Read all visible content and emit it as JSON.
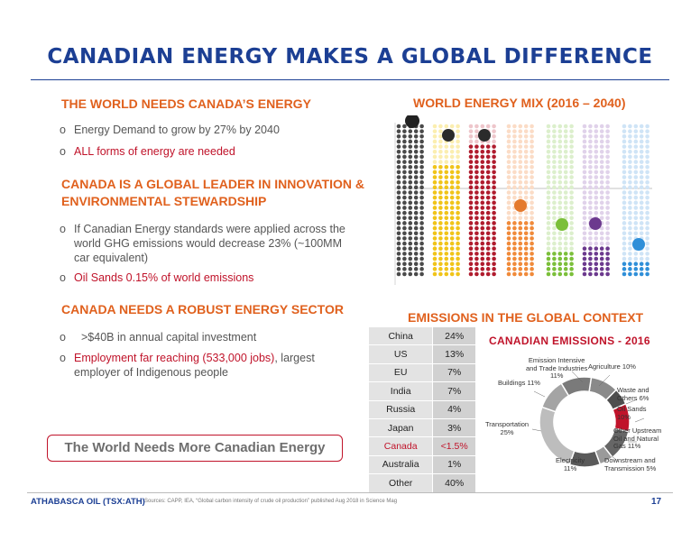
{
  "title": "CANADIAN ENERGY MAKES A GLOBAL DIFFERENCE",
  "left": {
    "section1": {
      "heading": "THE WORLD NEEDS CANADA’S ENERGY",
      "bullets": [
        "Energy Demand to grow by 27% by 2040",
        "ALL forms of energy are needed"
      ]
    },
    "section2": {
      "heading_line1": "CANADA IS A GLOBAL LEADER IN INNOVATION &",
      "heading_line2": "ENVIRONMENTAL STEWARDSHIP",
      "bullet1_lines": [
        "If Canadian Energy standards were applied across the",
        "world GHG emissions would decrease 23% (~100MM",
        "car equivalent)"
      ],
      "bullet2": "Oil Sands 0.15% of world emissions"
    },
    "section3": {
      "heading": "CANADA NEEDS A ROBUST ENERGY SECTOR",
      "bullet1": ">$40B in annual capital investment",
      "bullet2_red": "Employment far reaching (533,000 jobs)",
      "bullet2_rest_line1": ", largest",
      "bullet2_line2": "employer of Indigenous people"
    },
    "bullet_marker": "o",
    "callout": "The World Needs More Canadian Energy"
  },
  "energy_mix": {
    "heading": "WORLD ENERGY MIX (2016 – 2040)"
  },
  "emissions": {
    "heading": "EMISSIONS IN THE GLOBAL CONTEXT",
    "rows": [
      {
        "country": "China",
        "share": "24%"
      },
      {
        "country": "US",
        "share": "13%"
      },
      {
        "country": "EU",
        "share": "7%"
      },
      {
        "country": "India",
        "share": "7%"
      },
      {
        "country": "Russia",
        "share": "4%"
      },
      {
        "country": "Japan",
        "share": "3%"
      },
      {
        "country": "Canada",
        "share": "<1.5%"
      },
      {
        "country": "Australia",
        "share": "1%"
      },
      {
        "country": "Other",
        "share": "40%"
      }
    ]
  },
  "canadian_emissions": {
    "title": "CANADIAN EMISSIONS - 2016",
    "labels": {
      "emission_intensive": [
        "Emission Intensive",
        "and Trade Industries",
        "11%"
      ],
      "agriculture": [
        "Agriculture 10%"
      ],
      "buildings": [
        "Buildings 11%"
      ],
      "waste": [
        "Waste and",
        "Others 6%"
      ],
      "oil_sands": [
        "Oil Sands",
        "10%"
      ],
      "other_upstream": [
        "Other Upstream",
        "Oil and Natural",
        "Gas 11%"
      ],
      "transportation": [
        "Transportation",
        "25%"
      ],
      "electricity": [
        "Electricity",
        "11%"
      ],
      "downstream": [
        "Downstream and",
        "Transmission 5%"
      ]
    }
  },
  "chart_data": {
    "type": "pie",
    "title": "CANADIAN EMISSIONS - 2016",
    "categories": [
      "Agriculture",
      "Waste and Others",
      "Oil Sands",
      "Other Upstream Oil and Natural Gas",
      "Downstream and Transmission",
      "Electricity",
      "Transportation",
      "Buildings",
      "Emission Intensive and Trade Industries"
    ],
    "values": [
      10,
      6,
      10,
      11,
      5,
      11,
      25,
      11,
      11
    ],
    "colors": [
      "#8a8a8a",
      "#4e4e4e",
      "#c0132a",
      "#666666",
      "#9a9a9a",
      "#5a5a5a",
      "#bdbdbd",
      "#a4a4a4",
      "#7a7a7a"
    ]
  },
  "footer": {
    "company": "ATHABASCA OIL (TSX:ATH)",
    "sources": "Sources: CAPP, IEA, “Global carbon intensity of crude oil production” published Aug 2018 in Science Mag",
    "page": "17"
  },
  "colors": {
    "navy": "#1c3f94",
    "orange": "#e0611e",
    "red": "#c0132a"
  }
}
